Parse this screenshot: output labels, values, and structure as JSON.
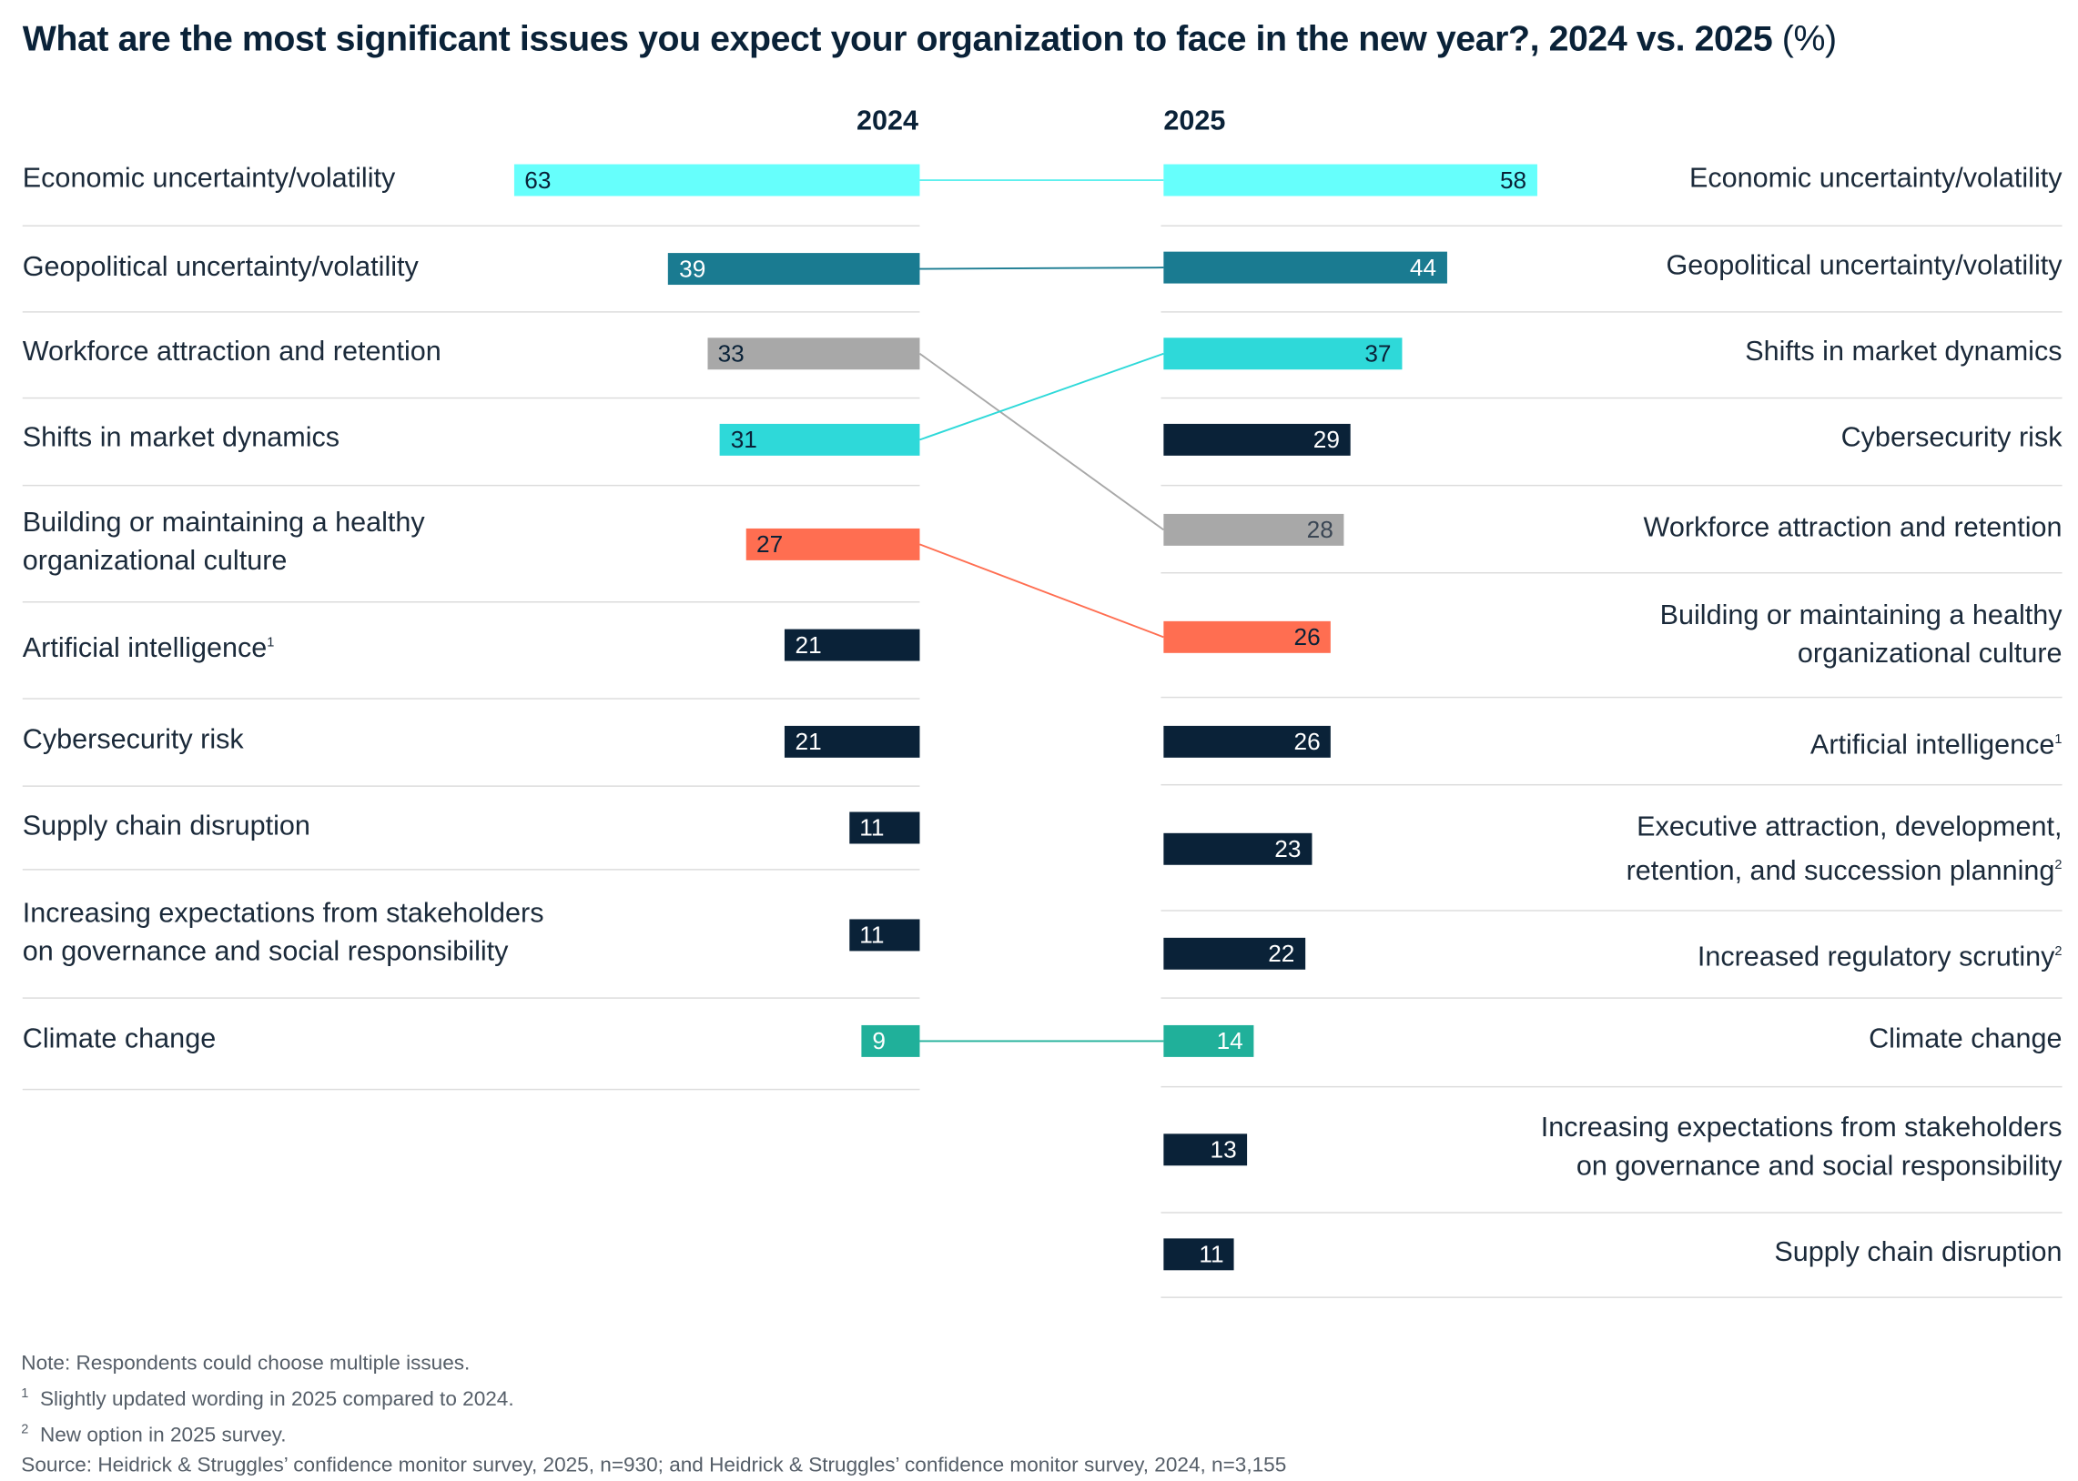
{
  "chart_data": {
    "type": "bar",
    "title": "What are the most significant issues you expect your organization to face in the new year?, 2024 vs. 2025",
    "title_unit": "(%)",
    "panels": [
      {
        "year": "2024",
        "rows": [
          {
            "label": "Economic uncertainty/volatility",
            "value": 63,
            "color": "#66fffc",
            "text": "#0a2238"
          },
          {
            "label": "Geopolitical uncertainty/volatility",
            "value": 39,
            "color": "#1a7b91",
            "text": "#ffffff"
          },
          {
            "label": "Workforce attraction and retention",
            "value": 33,
            "color": "#a8a8a8",
            "text": "#0a2238"
          },
          {
            "label": "Shifts in market dynamics",
            "value": 31,
            "color": "#2ed9d9",
            "text": "#0a2238"
          },
          {
            "label": "Building or maintaining a healthy organizational culture",
            "value": 27,
            "color": "#ff6e51",
            "text": "#0a2238"
          },
          {
            "label": "Artificial intelligence",
            "sup": "1",
            "value": 21,
            "color": "#0a2238",
            "text": "#ffffff"
          },
          {
            "label": "Cybersecurity risk",
            "value": 21,
            "color": "#0a2238",
            "text": "#ffffff"
          },
          {
            "label": "Supply chain disruption",
            "value": 11,
            "color": "#0a2238",
            "text": "#ffffff"
          },
          {
            "label": "Increasing expectations from stakeholders on governance and social responsibility",
            "value": 11,
            "color": "#0a2238",
            "text": "#ffffff"
          },
          {
            "label": "Climate change",
            "value": 9,
            "color": "#20b09a",
            "text": "#ffffff"
          }
        ]
      },
      {
        "year": "2025",
        "rows": [
          {
            "label": "Economic uncertainty/volatility",
            "value": 58,
            "color": "#66fffc",
            "text": "#0a2238"
          },
          {
            "label": "Geopolitical uncertainty/volatility",
            "value": 44,
            "color": "#1a7b91",
            "text": "#ffffff"
          },
          {
            "label": "Shifts in market dynamics",
            "value": 37,
            "color": "#2ed9d9",
            "text": "#0a2238"
          },
          {
            "label": "Cybersecurity risk",
            "value": 29,
            "color": "#0a2238",
            "text": "#ffffff"
          },
          {
            "label": "Workforce attraction and retention",
            "value": 28,
            "color": "#a8a8a8",
            "text": "#3a4654"
          },
          {
            "label": "Building or maintaining a healthy organizational culture",
            "value": 26,
            "color": "#ff6e51",
            "text": "#0a2238"
          },
          {
            "label": "Artificial intelligence",
            "sup": "1",
            "value": 26,
            "color": "#0a2238",
            "text": "#ffffff"
          },
          {
            "label": "Executive attraction, development, retention, and succession planning",
            "sup": "2",
            "value": 23,
            "color": "#0a2238",
            "text": "#ffffff"
          },
          {
            "label": "Increased regulatory scrutiny",
            "sup": "2",
            "value": 22,
            "color": "#0a2238",
            "text": "#ffffff"
          },
          {
            "label": "Climate change",
            "value": 14,
            "color": "#20b09a",
            "text": "#ffffff"
          },
          {
            "label": "Increasing expectations from stakeholders on governance and social responsibility",
            "value": 13,
            "color": "#0a2238",
            "text": "#ffffff"
          },
          {
            "label": "Supply chain disruption",
            "value": 11,
            "color": "#0a2238",
            "text": "#ffffff"
          }
        ]
      }
    ],
    "connectors": [
      "Economic uncertainty/volatility",
      "Geopolitical uncertainty/volatility",
      "Workforce attraction and retention",
      "Shifts in market dynamics",
      "Building or maintaining a healthy organizational culture",
      "Climate change"
    ]
  },
  "notes": {
    "note": "Note: Respondents could choose multiple issues.",
    "fn1": "Slightly updated wording in 2025 compared to 2024.",
    "fn2": "New option in 2025 survey.",
    "source": "Source: Heidrick & Struggles’ confidence monitor survey, 2025, n=930; and Heidrick & Struggles’ confidence monitor survey, 2024, n=3,155"
  }
}
